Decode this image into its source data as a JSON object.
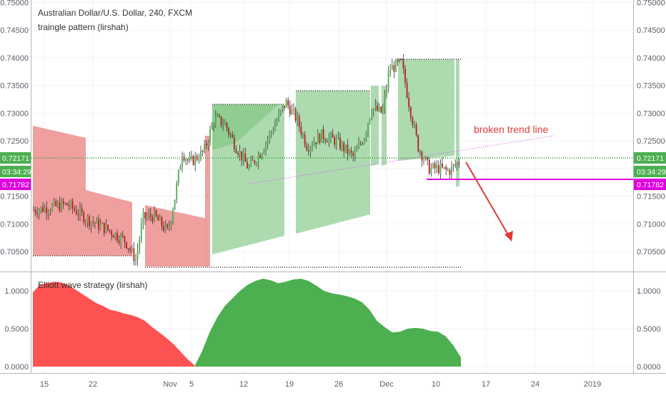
{
  "chart_data": [
    {
      "type": "candlestick",
      "title": "Australian Dollar/U.S. Dollar, 240, FXCM",
      "subtitle": "traingle pattern (lirshah)",
      "ylim": [
        0.7015,
        0.75
      ],
      "y_ticks": [
        "0.70500",
        "0.71000",
        "0.71500",
        "0.72000",
        "0.72500",
        "0.73000",
        "0.73500",
        "0.74000",
        "0.74500",
        "0.75000"
      ],
      "x_ticks": [
        "15",
        "22",
        "Nov",
        "5",
        "12",
        "19",
        "26",
        "Dec",
        "10",
        "17",
        "24",
        "2019"
      ],
      "price_close": "0.72171",
      "countdown": "03:34:29",
      "level_price": "0.71782",
      "annotation": "broken trend line",
      "colors": {
        "up": "#4caf50",
        "down": "#b71c1c",
        "bear_zone": "#ef9a9a",
        "bull_zone": "#a5d6a7",
        "level": "#e000e0",
        "arrow": "#e53935"
      }
    },
    {
      "type": "area",
      "title": "Elliott wave strategy (lirshah)",
      "ylim": [
        -0.08,
        1.28
      ],
      "y_ticks": [
        "0.0000",
        "0.5000",
        "1.0000"
      ],
      "series": [
        {
          "sign": "negative",
          "color": "#ff5252",
          "values": [
            0.98,
            1.08,
            1.1,
            1.12,
            1.11,
            1.08,
            1.02,
            0.96,
            0.9,
            0.84,
            0.8,
            0.75,
            0.73,
            0.7,
            0.68,
            0.65,
            0.6,
            0.52,
            0.45,
            0.38,
            0.3,
            0.2,
            0.1,
            0.02
          ]
        },
        {
          "sign": "positive",
          "color": "#4caf50",
          "values": [
            0.0,
            0.2,
            0.45,
            0.65,
            0.8,
            0.9,
            1.0,
            1.08,
            1.13,
            1.16,
            1.14,
            1.1,
            1.12,
            1.15,
            1.16,
            1.13,
            1.07,
            1.0,
            0.97,
            0.95,
            0.93,
            0.9,
            0.85,
            0.75,
            0.6,
            0.52,
            0.45,
            0.46,
            0.5,
            0.51,
            0.5,
            0.47,
            0.46,
            0.4,
            0.28,
            0.12
          ]
        }
      ]
    }
  ]
}
